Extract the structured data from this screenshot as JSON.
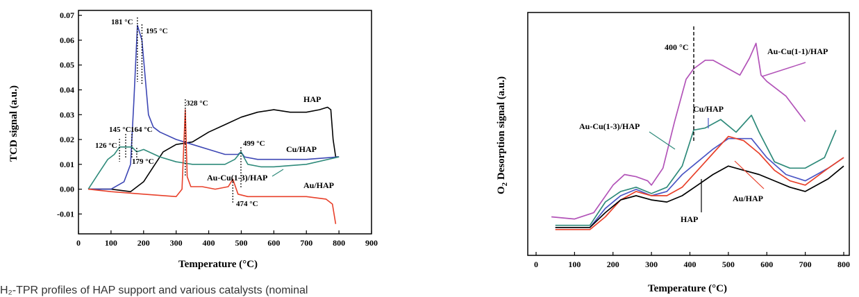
{
  "caption": "H₂-TPR profiles of HAP support and various catalysts (nominal",
  "chart_data": [
    {
      "type": "line",
      "xlabel": "Temperature (°C)",
      "ylabel": "TCD signal (a.u.)",
      "xlim": [
        0,
        900
      ],
      "ylim": [
        -0.018,
        0.072
      ],
      "xticks": [
        "0",
        "100",
        "200",
        "300",
        "400",
        "500",
        "600",
        "700",
        "800",
        "900"
      ],
      "yticks": [
        "-0.01",
        "0.00",
        "0.01",
        "0.02",
        "0.03",
        "0.04",
        "0.05",
        "0.06",
        "0.07"
      ],
      "series": [
        {
          "name": "HAP",
          "color": "#000000",
          "x": [
            30,
            100,
            160,
            200,
            230,
            260,
            300,
            350,
            400,
            450,
            500,
            550,
            600,
            650,
            700,
            740,
            765,
            775,
            782,
            790,
            800
          ],
          "y": [
            0.0,
            0.0,
            -0.001,
            0.003,
            0.009,
            0.015,
            0.018,
            0.019,
            0.023,
            0.026,
            0.029,
            0.031,
            0.032,
            0.031,
            0.031,
            0.032,
            0.033,
            0.032,
            0.02,
            0.013,
            0.013
          ]
        },
        {
          "name": "Cu/HAP",
          "color": "#3c46b4",
          "x": [
            30,
            100,
            140,
            160,
            170,
            181,
            195,
            205,
            215,
            230,
            250,
            300,
            350,
            400,
            450,
            490,
            499,
            510,
            550,
            600,
            700,
            800
          ],
          "y": [
            0.0,
            0.0,
            0.003,
            0.01,
            0.035,
            0.066,
            0.06,
            0.045,
            0.03,
            0.025,
            0.023,
            0.02,
            0.018,
            0.016,
            0.014,
            0.014,
            0.015,
            0.013,
            0.012,
            0.012,
            0.012,
            0.013
          ]
        },
        {
          "name": "Au-Cu(1-3)/HAP",
          "color": "#2e8a7a",
          "x": [
            30,
            60,
            90,
            110,
            126,
            145,
            164,
            179,
            200,
            250,
            300,
            350,
            400,
            450,
            480,
            499,
            520,
            560,
            600,
            700,
            800
          ],
          "y": [
            0.0,
            0.006,
            0.012,
            0.014,
            0.017,
            0.017,
            0.017,
            0.015,
            0.016,
            0.013,
            0.011,
            0.01,
            0.01,
            0.01,
            0.012,
            0.015,
            0.01,
            0.009,
            0.009,
            0.01,
            0.013
          ]
        },
        {
          "name": "Au/HAP",
          "color": "#e8402a",
          "x": [
            30,
            100,
            200,
            300,
            318,
            328,
            334,
            345,
            380,
            420,
            460,
            474,
            490,
            520,
            600,
            700,
            760,
            780,
            790
          ],
          "y": [
            0.0,
            -0.001,
            -0.002,
            -0.003,
            0.0,
            0.032,
            0.005,
            0.001,
            0.001,
            0.0,
            0.001,
            0.004,
            -0.002,
            -0.003,
            -0.003,
            -0.003,
            -0.004,
            -0.006,
            -0.014
          ]
        }
      ],
      "annotations": [
        {
          "text": "181 °C",
          "x": 181,
          "line": true
        },
        {
          "text": "195 °C",
          "x": 195,
          "line": true
        },
        {
          "text": "328 °C",
          "x": 328,
          "line": true
        },
        {
          "text": "145 °C",
          "x": 145,
          "line": true
        },
        {
          "text": "164 °C",
          "x": 164,
          "line": true
        },
        {
          "text": "126 °C",
          "x": 126,
          "line": true
        },
        {
          "text": "179 °C",
          "x": 179,
          "line": true
        },
        {
          "text": "499 °C",
          "x": 499,
          "line": true
        },
        {
          "text": "474 °C",
          "x": 474,
          "line": true
        }
      ],
      "series_labels": [
        "HAP",
        "Cu/HAP",
        "Au-Cu(1-3)/HAP",
        "Au/HAP"
      ]
    },
    {
      "type": "line",
      "xlabel": "Temperature (°C)",
      "ylabel": "O2 Desorption signal (a.u.)",
      "xlim": [
        0,
        800
      ],
      "ylim": [
        0,
        100
      ],
      "xticks": [
        "0",
        "100",
        "200",
        "300",
        "400",
        "500",
        "600",
        "700",
        "800"
      ],
      "series": [
        {
          "name": "Au-Cu(1-1)/HAP",
          "color": "#b253b8",
          "x": [
            40,
            100,
            150,
            200,
            230,
            260,
            290,
            300,
            330,
            360,
            390,
            410,
            440,
            460,
            500,
            530,
            555,
            572,
            585,
            600,
            650,
            700
          ],
          "y": [
            10,
            9,
            12,
            25,
            30,
            29,
            27,
            25,
            33,
            55,
            75,
            80,
            84,
            84,
            80,
            77,
            85,
            92,
            77,
            74,
            67,
            55
          ]
        },
        {
          "name": "Cu/HAP",
          "color": "#4a55c4",
          "x": [
            50,
            140,
            180,
            220,
            260,
            300,
            340,
            380,
            420,
            460,
            500,
            560,
            600,
            650,
            700,
            760,
            800
          ],
          "y": [
            5,
            5,
            14,
            20,
            23,
            20,
            22,
            30,
            36,
            42,
            47,
            47,
            38,
            30,
            27,
            33,
            38
          ]
        },
        {
          "name": "Au-Cu(1-3)/HAP",
          "color": "#2e8a7a",
          "x": [
            50,
            140,
            180,
            220,
            260,
            300,
            340,
            380,
            410,
            440,
            480,
            520,
            560,
            580,
            620,
            660,
            700,
            750,
            780
          ],
          "y": [
            6,
            6,
            17,
            22,
            24,
            21,
            24,
            34,
            51,
            52,
            56,
            50,
            58,
            50,
            36,
            33,
            33,
            38,
            51
          ]
        },
        {
          "name": "Au/HAP",
          "color": "#e8402a",
          "x": [
            50,
            140,
            180,
            220,
            260,
            300,
            340,
            380,
            420,
            460,
            500,
            540,
            580,
            620,
            660,
            700,
            760,
            800
          ],
          "y": [
            4,
            4,
            10,
            18,
            22,
            20,
            20,
            24,
            32,
            40,
            48,
            46,
            40,
            32,
            27,
            25,
            33,
            38
          ]
        },
        {
          "name": "HAP",
          "color": "#000000",
          "x": [
            50,
            140,
            180,
            220,
            260,
            300,
            340,
            380,
            420,
            460,
            500,
            540,
            580,
            620,
            660,
            700,
            760,
            800
          ],
          "y": [
            5,
            5,
            12,
            18,
            20,
            18,
            17,
            20,
            25,
            30,
            34,
            32,
            30,
            27,
            24,
            22,
            28,
            34
          ]
        }
      ],
      "annotations": [
        {
          "text": "400 °C",
          "x": 410,
          "line": true
        }
      ],
      "series_labels": [
        "Au-Cu(1-1)/HAP",
        "Cu/HAP",
        "Au-Cu(1-3)/HAP",
        "Au/HAP",
        "HAP"
      ]
    }
  ]
}
